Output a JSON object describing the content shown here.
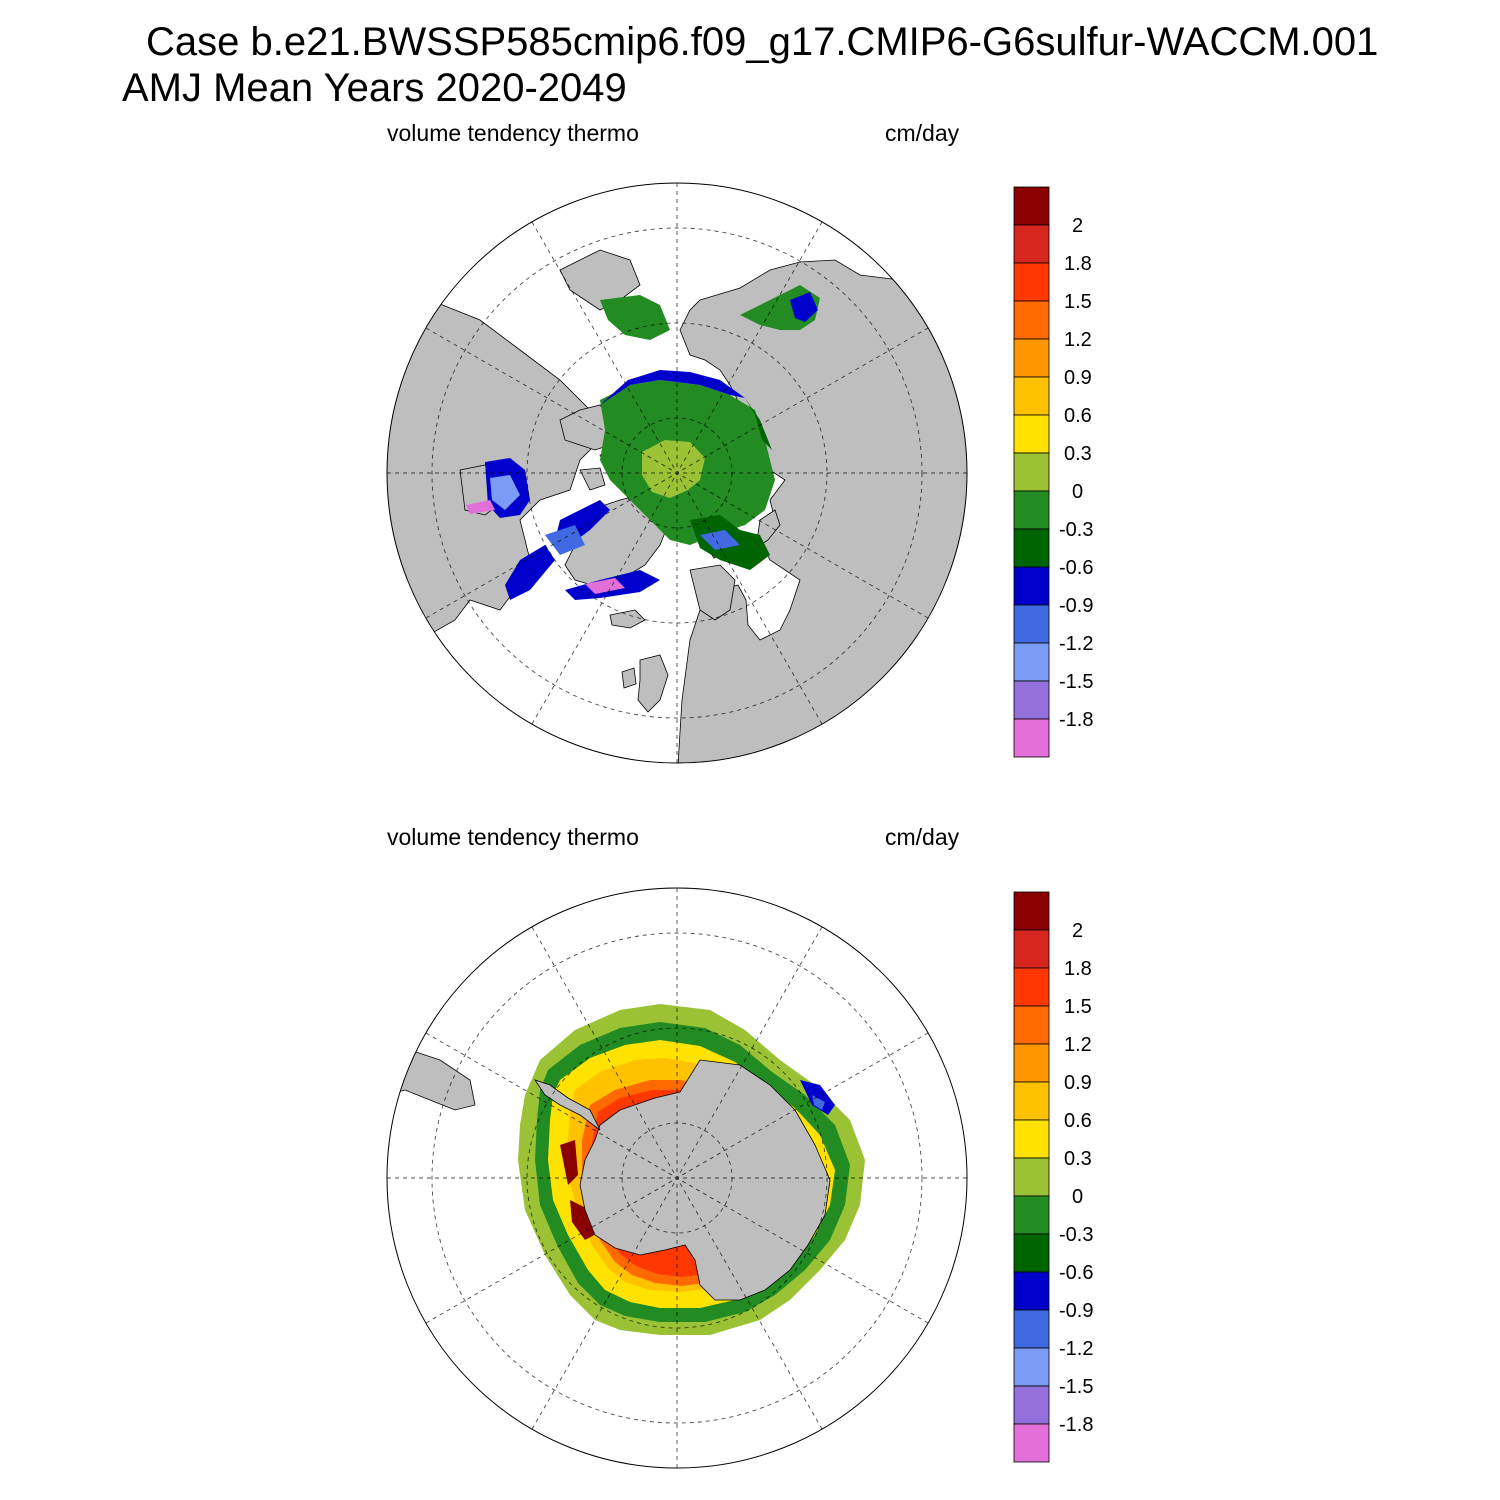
{
  "title_line1": "Case b.e21.BWSSP585cmip6.f09_g17.CMIP6-G6sulfur-WACCM.001",
  "title_line2": "AMJ Mean   Years 2020-2049",
  "panels": [
    {
      "name": "arctic",
      "left_label": "volume tendency thermo",
      "right_label": "cm/day"
    },
    {
      "name": "antarctic",
      "left_label": "volume tendency thermo",
      "right_label": "cm/day"
    }
  ],
  "colorbar": {
    "labels": [
      "2",
      "1.8",
      "1.5",
      "1.2",
      "0.9",
      "0.6",
      "0.3",
      "0",
      "-0.3",
      "-0.6",
      "-0.9",
      "-1.2",
      "-1.5",
      "-1.8"
    ],
    "colors": [
      "#8b0000",
      "#d7261e",
      "#ff3700",
      "#ff6a00",
      "#ff9600",
      "#ffc100",
      "#ffe200",
      "#9ac234",
      "#228b22",
      "#006400",
      "#0000cd",
      "#4169e1",
      "#7b9cf4",
      "#9370db",
      "#e36fd9"
    ]
  },
  "colors": {
    "land": "#bebebe",
    "ocean": "#ffffff",
    "border": "#000000"
  }
}
